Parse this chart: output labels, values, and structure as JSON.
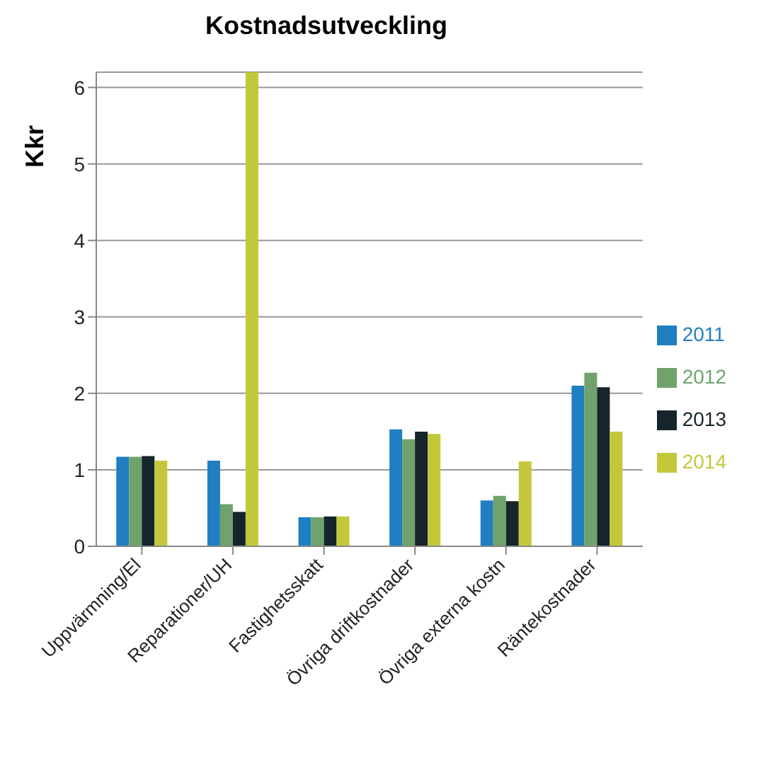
{
  "chart_data": {
    "type": "bar",
    "title": "Kostnadsutveckling",
    "ylabel": "Kkr",
    "categories": [
      "Uppvärmning/El",
      "Reparationer/UH",
      "Fastighetsskatt",
      "Övriga driftkostnader",
      "Övriga externa kostn",
      "Räntekostnader"
    ],
    "series": [
      {
        "name": "2011",
        "color": "#1f7fc0",
        "values": [
          1.17,
          1.12,
          0.38,
          1.53,
          0.6,
          2.1
        ]
      },
      {
        "name": "2012",
        "color": "#6fa36b",
        "values": [
          1.17,
          0.55,
          0.38,
          1.4,
          0.66,
          2.27
        ]
      },
      {
        "name": "2013",
        "color": "#16242b",
        "values": [
          1.18,
          0.45,
          0.39,
          1.5,
          0.59,
          2.08
        ]
      },
      {
        "name": "2014",
        "color": "#c3c83a",
        "values": [
          1.12,
          6.2,
          0.39,
          1.47,
          1.11,
          1.5
        ]
      }
    ],
    "ylim": [
      0,
      6.2
    ],
    "yticks": [
      0,
      1,
      2,
      3,
      4,
      5,
      6
    ],
    "grid": "y",
    "legend": "right"
  }
}
